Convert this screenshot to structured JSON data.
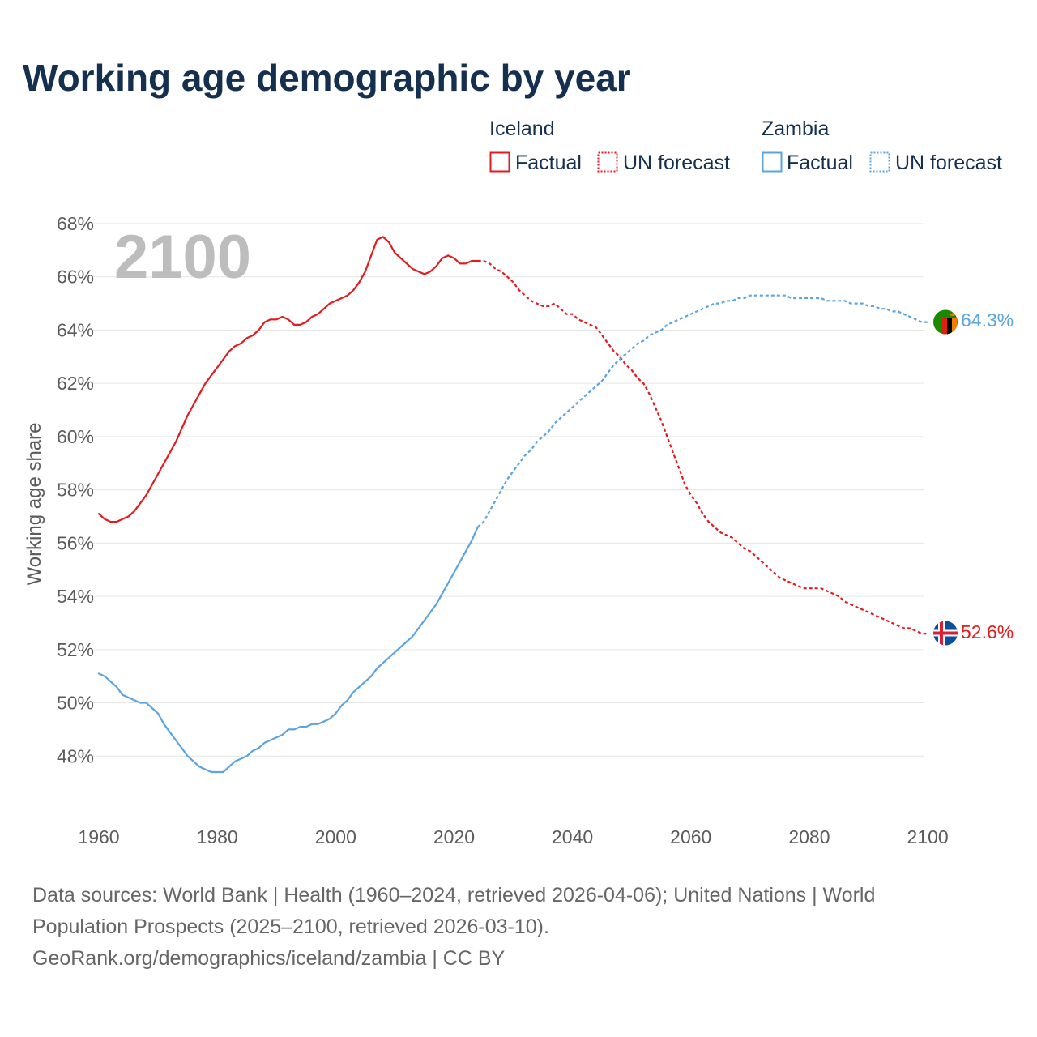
{
  "chart_data": {
    "type": "line",
    "title": "Working age demographic by year",
    "ylabel": "Working age share",
    "xlabel": "",
    "xlim": [
      1960,
      2103
    ],
    "ylim": [
      46,
      68
    ],
    "x_ticks": [
      1960,
      1980,
      2000,
      2020,
      2040,
      2060,
      2080,
      2100
    ],
    "y_ticks": [
      48,
      50,
      52,
      54,
      56,
      58,
      60,
      62,
      64,
      66,
      68
    ],
    "y_tick_suffix": "%",
    "watermark_year": "2100",
    "legend": {
      "placement": "top-right",
      "groups": [
        {
          "name": "Iceland",
          "factual_label": "Factual",
          "forecast_label": "UN forecast",
          "color": "#e41a1c"
        },
        {
          "name": "Zambia",
          "factual_label": "Factual",
          "forecast_label": "UN forecast",
          "color": "#5ba4e0"
        }
      ]
    },
    "series": [
      {
        "name": "Iceland",
        "color": "#e41a1c",
        "end_label": "52.6%",
        "factual": [
          [
            1960,
            57.1
          ],
          [
            1961,
            56.9
          ],
          [
            1962,
            56.8
          ],
          [
            1963,
            56.8
          ],
          [
            1964,
            56.9
          ],
          [
            1965,
            57.0
          ],
          [
            1966,
            57.2
          ],
          [
            1967,
            57.5
          ],
          [
            1968,
            57.8
          ],
          [
            1969,
            58.2
          ],
          [
            1970,
            58.6
          ],
          [
            1971,
            59.0
          ],
          [
            1972,
            59.4
          ],
          [
            1973,
            59.8
          ],
          [
            1974,
            60.3
          ],
          [
            1975,
            60.8
          ],
          [
            1976,
            61.2
          ],
          [
            1977,
            61.6
          ],
          [
            1978,
            62.0
          ],
          [
            1979,
            62.3
          ],
          [
            1980,
            62.6
          ],
          [
            1981,
            62.9
          ],
          [
            1982,
            63.2
          ],
          [
            1983,
            63.4
          ],
          [
            1984,
            63.5
          ],
          [
            1985,
            63.7
          ],
          [
            1986,
            63.8
          ],
          [
            1987,
            64.0
          ],
          [
            1988,
            64.3
          ],
          [
            1989,
            64.4
          ],
          [
            1990,
            64.4
          ],
          [
            1991,
            64.5
          ],
          [
            1992,
            64.4
          ],
          [
            1993,
            64.2
          ],
          [
            1994,
            64.2
          ],
          [
            1995,
            64.3
          ],
          [
            1996,
            64.5
          ],
          [
            1997,
            64.6
          ],
          [
            1998,
            64.8
          ],
          [
            1999,
            65.0
          ],
          [
            2000,
            65.1
          ],
          [
            2001,
            65.2
          ],
          [
            2002,
            65.3
          ],
          [
            2003,
            65.5
          ],
          [
            2004,
            65.8
          ],
          [
            2005,
            66.2
          ],
          [
            2006,
            66.8
          ],
          [
            2007,
            67.4
          ],
          [
            2008,
            67.5
          ],
          [
            2009,
            67.3
          ],
          [
            2010,
            66.9
          ],
          [
            2011,
            66.7
          ],
          [
            2012,
            66.5
          ],
          [
            2013,
            66.3
          ],
          [
            2014,
            66.2
          ],
          [
            2015,
            66.1
          ],
          [
            2016,
            66.2
          ],
          [
            2017,
            66.4
          ],
          [
            2018,
            66.7
          ],
          [
            2019,
            66.8
          ],
          [
            2020,
            66.7
          ],
          [
            2021,
            66.5
          ],
          [
            2022,
            66.5
          ],
          [
            2023,
            66.6
          ],
          [
            2024,
            66.6
          ]
        ],
        "forecast": [
          [
            2024,
            66.6
          ],
          [
            2025,
            66.6
          ],
          [
            2026,
            66.5
          ],
          [
            2027,
            66.3
          ],
          [
            2028,
            66.2
          ],
          [
            2029,
            66.0
          ],
          [
            2030,
            65.8
          ],
          [
            2031,
            65.5
          ],
          [
            2032,
            65.3
          ],
          [
            2033,
            65.1
          ],
          [
            2034,
            65.0
          ],
          [
            2035,
            64.9
          ],
          [
            2036,
            64.9
          ],
          [
            2037,
            65.0
          ],
          [
            2038,
            64.8
          ],
          [
            2039,
            64.6
          ],
          [
            2040,
            64.6
          ],
          [
            2041,
            64.4
          ],
          [
            2042,
            64.3
          ],
          [
            2043,
            64.2
          ],
          [
            2044,
            64.1
          ],
          [
            2045,
            63.8
          ],
          [
            2046,
            63.5
          ],
          [
            2047,
            63.2
          ],
          [
            2048,
            63.0
          ],
          [
            2049,
            62.7
          ],
          [
            2050,
            62.5
          ],
          [
            2051,
            62.2
          ],
          [
            2052,
            62.0
          ],
          [
            2053,
            61.6
          ],
          [
            2054,
            61.1
          ],
          [
            2055,
            60.6
          ],
          [
            2056,
            60.0
          ],
          [
            2057,
            59.4
          ],
          [
            2058,
            58.8
          ],
          [
            2059,
            58.2
          ],
          [
            2060,
            57.8
          ],
          [
            2061,
            57.5
          ],
          [
            2062,
            57.1
          ],
          [
            2063,
            56.8
          ],
          [
            2064,
            56.6
          ],
          [
            2065,
            56.4
          ],
          [
            2066,
            56.3
          ],
          [
            2067,
            56.2
          ],
          [
            2068,
            56.0
          ],
          [
            2069,
            55.8
          ],
          [
            2070,
            55.7
          ],
          [
            2071,
            55.5
          ],
          [
            2072,
            55.3
          ],
          [
            2073,
            55.1
          ],
          [
            2074,
            54.9
          ],
          [
            2075,
            54.7
          ],
          [
            2076,
            54.6
          ],
          [
            2077,
            54.5
          ],
          [
            2078,
            54.4
          ],
          [
            2079,
            54.3
          ],
          [
            2080,
            54.3
          ],
          [
            2081,
            54.3
          ],
          [
            2082,
            54.3
          ],
          [
            2083,
            54.2
          ],
          [
            2084,
            54.1
          ],
          [
            2085,
            54.0
          ],
          [
            2086,
            53.8
          ],
          [
            2087,
            53.7
          ],
          [
            2088,
            53.6
          ],
          [
            2089,
            53.5
          ],
          [
            2090,
            53.4
          ],
          [
            2091,
            53.3
          ],
          [
            2092,
            53.2
          ],
          [
            2093,
            53.1
          ],
          [
            2094,
            53.0
          ],
          [
            2095,
            52.9
          ],
          [
            2096,
            52.8
          ],
          [
            2097,
            52.8
          ],
          [
            2098,
            52.7
          ],
          [
            2099,
            52.6
          ],
          [
            2100,
            52.6
          ]
        ]
      },
      {
        "name": "Zambia",
        "color": "#5ba4e0",
        "end_label": "64.3%",
        "factual": [
          [
            1960,
            51.1
          ],
          [
            1961,
            51.0
          ],
          [
            1962,
            50.8
          ],
          [
            1963,
            50.6
          ],
          [
            1964,
            50.3
          ],
          [
            1965,
            50.2
          ],
          [
            1966,
            50.1
          ],
          [
            1967,
            50.0
          ],
          [
            1968,
            50.0
          ],
          [
            1969,
            49.8
          ],
          [
            1970,
            49.6
          ],
          [
            1971,
            49.2
          ],
          [
            1972,
            48.9
          ],
          [
            1973,
            48.6
          ],
          [
            1974,
            48.3
          ],
          [
            1975,
            48.0
          ],
          [
            1976,
            47.8
          ],
          [
            1977,
            47.6
          ],
          [
            1978,
            47.5
          ],
          [
            1979,
            47.4
          ],
          [
            1980,
            47.4
          ],
          [
            1981,
            47.4
          ],
          [
            1982,
            47.6
          ],
          [
            1983,
            47.8
          ],
          [
            1984,
            47.9
          ],
          [
            1985,
            48.0
          ],
          [
            1986,
            48.2
          ],
          [
            1987,
            48.3
          ],
          [
            1988,
            48.5
          ],
          [
            1989,
            48.6
          ],
          [
            1990,
            48.7
          ],
          [
            1991,
            48.8
          ],
          [
            1992,
            49.0
          ],
          [
            1993,
            49.0
          ],
          [
            1994,
            49.1
          ],
          [
            1995,
            49.1
          ],
          [
            1996,
            49.2
          ],
          [
            1997,
            49.2
          ],
          [
            1998,
            49.3
          ],
          [
            1999,
            49.4
          ],
          [
            2000,
            49.6
          ],
          [
            2001,
            49.9
          ],
          [
            2002,
            50.1
          ],
          [
            2003,
            50.4
          ],
          [
            2004,
            50.6
          ],
          [
            2005,
            50.8
          ],
          [
            2006,
            51.0
          ],
          [
            2007,
            51.3
          ],
          [
            2008,
            51.5
          ],
          [
            2009,
            51.7
          ],
          [
            2010,
            51.9
          ],
          [
            2011,
            52.1
          ],
          [
            2012,
            52.3
          ],
          [
            2013,
            52.5
          ],
          [
            2014,
            52.8
          ],
          [
            2015,
            53.1
          ],
          [
            2016,
            53.4
          ],
          [
            2017,
            53.7
          ],
          [
            2018,
            54.1
          ],
          [
            2019,
            54.5
          ],
          [
            2020,
            54.9
          ],
          [
            2021,
            55.3
          ],
          [
            2022,
            55.7
          ],
          [
            2023,
            56.1
          ],
          [
            2024,
            56.6
          ]
        ],
        "forecast": [
          [
            2024,
            56.6
          ],
          [
            2025,
            56.8
          ],
          [
            2026,
            57.2
          ],
          [
            2027,
            57.6
          ],
          [
            2028,
            58.0
          ],
          [
            2029,
            58.4
          ],
          [
            2030,
            58.7
          ],
          [
            2031,
            59.0
          ],
          [
            2032,
            59.3
          ],
          [
            2033,
            59.5
          ],
          [
            2034,
            59.8
          ],
          [
            2035,
            60.0
          ],
          [
            2036,
            60.2
          ],
          [
            2037,
            60.5
          ],
          [
            2038,
            60.7
          ],
          [
            2039,
            60.9
          ],
          [
            2040,
            61.1
          ],
          [
            2041,
            61.3
          ],
          [
            2042,
            61.5
          ],
          [
            2043,
            61.7
          ],
          [
            2044,
            61.9
          ],
          [
            2045,
            62.1
          ],
          [
            2046,
            62.4
          ],
          [
            2047,
            62.7
          ],
          [
            2048,
            62.9
          ],
          [
            2049,
            63.1
          ],
          [
            2050,
            63.3
          ],
          [
            2051,
            63.5
          ],
          [
            2052,
            63.6
          ],
          [
            2053,
            63.8
          ],
          [
            2054,
            63.9
          ],
          [
            2055,
            64.0
          ],
          [
            2056,
            64.2
          ],
          [
            2057,
            64.3
          ],
          [
            2058,
            64.4
          ],
          [
            2059,
            64.5
          ],
          [
            2060,
            64.6
          ],
          [
            2061,
            64.7
          ],
          [
            2062,
            64.8
          ],
          [
            2063,
            64.9
          ],
          [
            2064,
            65.0
          ],
          [
            2065,
            65.0
          ],
          [
            2066,
            65.1
          ],
          [
            2067,
            65.1
          ],
          [
            2068,
            65.2
          ],
          [
            2069,
            65.2
          ],
          [
            2070,
            65.3
          ],
          [
            2071,
            65.3
          ],
          [
            2072,
            65.3
          ],
          [
            2073,
            65.3
          ],
          [
            2074,
            65.3
          ],
          [
            2075,
            65.3
          ],
          [
            2076,
            65.3
          ],
          [
            2077,
            65.2
          ],
          [
            2078,
            65.2
          ],
          [
            2079,
            65.2
          ],
          [
            2080,
            65.2
          ],
          [
            2081,
            65.2
          ],
          [
            2082,
            65.2
          ],
          [
            2083,
            65.1
          ],
          [
            2084,
            65.1
          ],
          [
            2085,
            65.1
          ],
          [
            2086,
            65.1
          ],
          [
            2087,
            65.0
          ],
          [
            2088,
            65.0
          ],
          [
            2089,
            65.0
          ],
          [
            2090,
            64.9
          ],
          [
            2091,
            64.9
          ],
          [
            2092,
            64.8
          ],
          [
            2093,
            64.8
          ],
          [
            2094,
            64.7
          ],
          [
            2095,
            64.7
          ],
          [
            2096,
            64.6
          ],
          [
            2097,
            64.5
          ],
          [
            2098,
            64.4
          ],
          [
            2099,
            64.3
          ],
          [
            2100,
            64.3
          ]
        ]
      }
    ]
  },
  "flags": {
    "iceland": {
      "field": "#02529c",
      "cross_white": "#ffffff",
      "cross_red": "#dc1e35"
    },
    "zambia": {
      "field": "#198a00",
      "stripe_red": "#de2010",
      "stripe_black": "#000000",
      "stripe_orange": "#ef7d00"
    }
  },
  "footer": {
    "line1": "Data sources: World Bank | Health (1960–2024, retrieved 2026-04-06); United Nations | World",
    "line2": "Population Prospects (2025–2100, retrieved 2026-03-10).",
    "line3": "GeoRank.org/demographics/iceland/zambia | CC BY"
  }
}
